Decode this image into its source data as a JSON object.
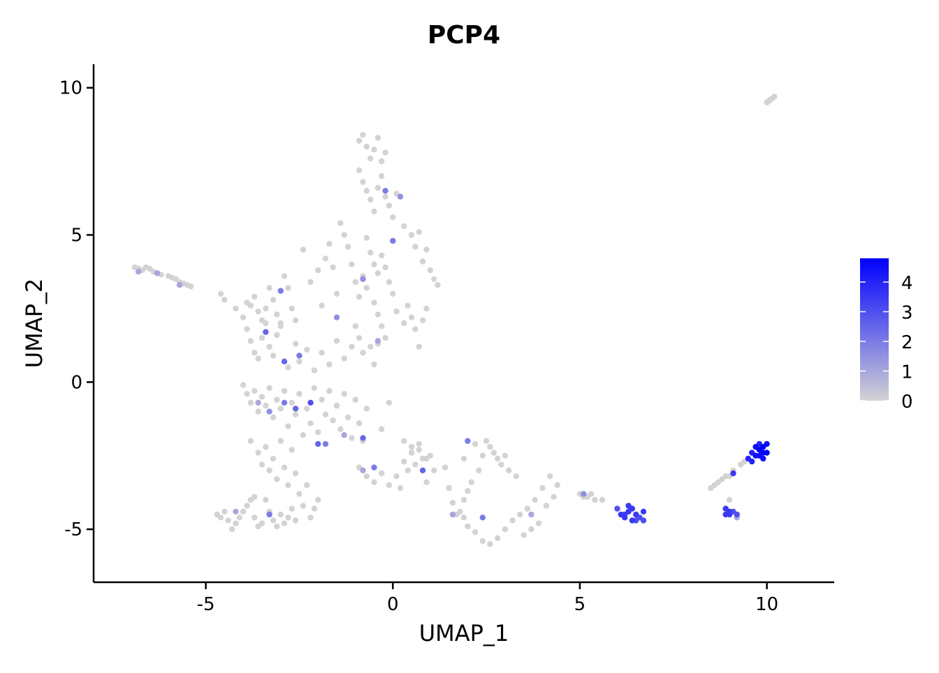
{
  "chart_data": {
    "type": "scatter",
    "title": "PCP4",
    "xlabel": "UMAP_1",
    "ylabel": "UMAP_2",
    "xlim": [
      -8,
      11.8
    ],
    "ylim": [
      -6.8,
      10.8
    ],
    "x_ticks": [
      -5,
      0,
      5,
      10
    ],
    "y_ticks": [
      -5,
      0,
      5,
      10
    ],
    "x_tick_labels": [
      "-5",
      "0",
      "5",
      "10"
    ],
    "y_tick_labels": [
      "-5",
      "0",
      "5",
      "10"
    ],
    "grid": false,
    "legend": {
      "position": "right",
      "type": "colorbar",
      "min": 0,
      "max": 4.8,
      "ticks": [
        0,
        1,
        2,
        3,
        4
      ],
      "tick_labels": [
        "0",
        "1",
        "2",
        "3",
        "4"
      ],
      "color_low": "#d3d3d3",
      "color_high": "#0000ff"
    },
    "point_color_low": "#d3d3d3",
    "point_color_high": "#0000ff",
    "points": [
      [
        -6.9,
        3.9,
        0
      ],
      [
        -6.8,
        3.85,
        0
      ],
      [
        -6.7,
        3.8,
        0
      ],
      [
        -6.6,
        3.9,
        0
      ],
      [
        -6.5,
        3.85,
        0
      ],
      [
        -6.4,
        3.75,
        0
      ],
      [
        -6.3,
        3.7,
        0
      ],
      [
        -6.2,
        3.65,
        0
      ],
      [
        -6.0,
        3.6,
        0
      ],
      [
        -5.9,
        3.55,
        0
      ],
      [
        -5.8,
        3.5,
        0
      ],
      [
        -5.7,
        3.4,
        0
      ],
      [
        -5.6,
        3.35,
        0
      ],
      [
        -5.5,
        3.3,
        0
      ],
      [
        -5.4,
        3.25,
        0
      ],
      [
        -6.8,
        3.75,
        1
      ],
      [
        -6.3,
        3.7,
        1
      ],
      [
        -5.7,
        3.3,
        1
      ],
      [
        -4.6,
        3.0,
        0
      ],
      [
        -4.5,
        2.8,
        0
      ],
      [
        -4.2,
        2.5,
        0
      ],
      [
        -4.0,
        2.2,
        0
      ],
      [
        -3.9,
        2.7,
        0
      ],
      [
        -3.8,
        2.6,
        0
      ],
      [
        -3.7,
        2.9,
        0
      ],
      [
        -3.6,
        2.4,
        0
      ],
      [
        -3.5,
        2.1,
        0
      ],
      [
        -3.4,
        2.5,
        0
      ],
      [
        -3.3,
        3.2,
        0
      ],
      [
        -3.2,
        2.8,
        0
      ],
      [
        -3.1,
        2.3,
        0
      ],
      [
        -3.0,
        2.0,
        0
      ],
      [
        -2.9,
        3.6,
        0
      ],
      [
        -2.8,
        3.2,
        0
      ],
      [
        -2.7,
        2.5,
        0
      ],
      [
        -2.6,
        2.1,
        0
      ],
      [
        -2.4,
        4.5,
        0
      ],
      [
        -2.2,
        3.4,
        0
      ],
      [
        -2.0,
        3.8,
        0
      ],
      [
        -1.9,
        2.6,
        0
      ],
      [
        -1.8,
        4.2,
        0
      ],
      [
        -1.7,
        4.7,
        0
      ],
      [
        -1.6,
        3.9,
        0
      ],
      [
        -1.5,
        3.0,
        0
      ],
      [
        -1.4,
        5.4,
        0
      ],
      [
        -1.3,
        5.0,
        0
      ],
      [
        -1.2,
        4.6,
        0
      ],
      [
        -1.1,
        4.0,
        0
      ],
      [
        -1.0,
        3.4,
        0
      ],
      [
        -0.9,
        2.9,
        0
      ],
      [
        -3.0,
        3.1,
        2
      ],
      [
        -1.5,
        2.2,
        1.5
      ],
      [
        -3.9,
        1.8,
        0
      ],
      [
        -3.8,
        1.4,
        0
      ],
      [
        -3.7,
        1.0,
        0
      ],
      [
        -3.6,
        0.8,
        0
      ],
      [
        -3.5,
        1.5,
        0
      ],
      [
        -3.4,
        2.0,
        0
      ],
      [
        -3.3,
        1.2,
        0
      ],
      [
        -3.2,
        0.9,
        0
      ],
      [
        -3.1,
        1.6,
        0
      ],
      [
        -3.0,
        1.9,
        0
      ],
      [
        -2.8,
        0.5,
        0
      ],
      [
        -2.6,
        1.3,
        0
      ],
      [
        -2.5,
        0.7,
        0
      ],
      [
        -2.3,
        1.1,
        0
      ],
      [
        -2.1,
        0.4,
        0
      ],
      [
        -1.9,
        1.0,
        0
      ],
      [
        -1.7,
        0.6,
        0
      ],
      [
        -1.5,
        1.4,
        0
      ],
      [
        -1.3,
        0.8,
        0
      ],
      [
        -1.1,
        1.2,
        0
      ],
      [
        -1.0,
        1.9,
        0
      ],
      [
        -0.9,
        1.5,
        0
      ],
      [
        -0.8,
        1.0,
        0
      ],
      [
        -3.4,
        1.7,
        2.5
      ],
      [
        -2.9,
        0.7,
        2.5
      ],
      [
        -2.5,
        0.9,
        2
      ],
      [
        -0.9,
        8.2,
        0
      ],
      [
        -0.8,
        8.4,
        0
      ],
      [
        -0.7,
        8.0,
        0
      ],
      [
        -0.6,
        7.6,
        0
      ],
      [
        -0.5,
        7.9,
        0
      ],
      [
        -0.4,
        8.3,
        0
      ],
      [
        -0.3,
        7.5,
        0
      ],
      [
        -0.2,
        7.8,
        0
      ],
      [
        -0.9,
        7.2,
        0
      ],
      [
        -0.8,
        6.8,
        0
      ],
      [
        -0.7,
        6.5,
        0
      ],
      [
        -0.6,
        6.2,
        0
      ],
      [
        -0.5,
        5.8,
        0
      ],
      [
        -0.4,
        6.6,
        0
      ],
      [
        -0.3,
        7.0,
        0
      ],
      [
        -0.2,
        6.3,
        0
      ],
      [
        -0.1,
        6.0,
        0
      ],
      [
        0.0,
        5.6,
        0
      ],
      [
        0.1,
        6.4,
        0
      ],
      [
        0.3,
        5.3,
        0
      ],
      [
        0.5,
        5.0,
        0
      ],
      [
        0.6,
        4.6,
        0
      ],
      [
        0.7,
        5.1,
        0
      ],
      [
        0.8,
        4.1,
        0
      ],
      [
        0.9,
        4.5,
        0
      ],
      [
        1.0,
        3.8,
        0
      ],
      [
        1.1,
        3.5,
        0
      ],
      [
        1.2,
        3.3,
        0
      ],
      [
        -0.2,
        6.5,
        2
      ],
      [
        0.2,
        6.3,
        1.5
      ],
      [
        0.0,
        4.8,
        2
      ],
      [
        -0.7,
        4.9,
        0
      ],
      [
        -0.6,
        4.4,
        0
      ],
      [
        -0.5,
        4.0,
        0
      ],
      [
        -0.4,
        3.7,
        0
      ],
      [
        -0.3,
        4.3,
        0
      ],
      [
        -0.2,
        3.9,
        0
      ],
      [
        -0.1,
        3.4,
        0
      ],
      [
        0.0,
        3.0,
        0
      ],
      [
        -0.8,
        3.6,
        0
      ],
      [
        -0.7,
        3.2,
        0
      ],
      [
        -0.5,
        2.7,
        0
      ],
      [
        -0.4,
        2.3,
        0
      ],
      [
        -0.3,
        1.9,
        0
      ],
      [
        -0.2,
        1.5,
        0
      ],
      [
        0.1,
        2.4,
        0
      ],
      [
        0.3,
        2.0,
        0
      ],
      [
        0.4,
        2.6,
        0
      ],
      [
        0.5,
        2.2,
        0
      ],
      [
        0.6,
        1.8,
        0
      ],
      [
        0.7,
        1.2,
        0
      ],
      [
        0.8,
        2.1,
        0
      ],
      [
        0.9,
        2.5,
        0
      ],
      [
        -0.6,
        1.2,
        0
      ],
      [
        -0.5,
        0.6,
        0
      ],
      [
        -0.4,
        1.3,
        0
      ],
      [
        -0.8,
        3.5,
        1.5
      ],
      [
        -0.4,
        1.4,
        1
      ],
      [
        -4.0,
        -0.1,
        0
      ],
      [
        -3.9,
        -0.4,
        0
      ],
      [
        -3.8,
        -0.7,
        0
      ],
      [
        -3.7,
        -0.3,
        0
      ],
      [
        -3.6,
        -1.0,
        0
      ],
      [
        -3.5,
        -0.5,
        0
      ],
      [
        -3.4,
        -0.8,
        0
      ],
      [
        -3.3,
        -0.2,
        0
      ],
      [
        -3.2,
        -1.2,
        0
      ],
      [
        -3.1,
        -0.6,
        0
      ],
      [
        -3.0,
        -0.9,
        0
      ],
      [
        -2.9,
        -0.3,
        0
      ],
      [
        -2.8,
        -1.5,
        0
      ],
      [
        -2.7,
        -0.7,
        0
      ],
      [
        -2.6,
        -1.1,
        0
      ],
      [
        -2.5,
        -0.4,
        0
      ],
      [
        -2.4,
        -1.8,
        0
      ],
      [
        -2.3,
        -0.9,
        0
      ],
      [
        -2.2,
        -1.4,
        0
      ],
      [
        -2.1,
        -0.2,
        0
      ],
      [
        -2.0,
        -1.7,
        0
      ],
      [
        -1.9,
        -0.6,
        0
      ],
      [
        -1.8,
        -1.1,
        0
      ],
      [
        -1.7,
        -0.3,
        0
      ],
      [
        -1.6,
        -1.3,
        0
      ],
      [
        -1.5,
        -0.8,
        0
      ],
      [
        -1.4,
        -1.6,
        0
      ],
      [
        -1.3,
        -0.4,
        0
      ],
      [
        -1.2,
        -1.2,
        0
      ],
      [
        -1.1,
        -1.9,
        0
      ],
      [
        -1.0,
        -0.6,
        0
      ],
      [
        -0.9,
        -1.4,
        0
      ],
      [
        -0.8,
        -2.0,
        0
      ],
      [
        -0.7,
        -0.9,
        0
      ],
      [
        -0.3,
        -1.6,
        0
      ],
      [
        -0.1,
        -0.7,
        0
      ],
      [
        -3.6,
        -0.7,
        1
      ],
      [
        -3.3,
        -1.0,
        1.5
      ],
      [
        -2.9,
        -0.7,
        2
      ],
      [
        -2.6,
        -0.9,
        2.5
      ],
      [
        -2.2,
        -0.7,
        3
      ],
      [
        -2.0,
        -2.1,
        2.5
      ],
      [
        -1.8,
        -2.1,
        2
      ],
      [
        -0.8,
        -1.9,
        2.5
      ],
      [
        -1.3,
        -1.8,
        1
      ],
      [
        -3.8,
        -2.0,
        0
      ],
      [
        -3.6,
        -2.4,
        0
      ],
      [
        -3.5,
        -2.8,
        0
      ],
      [
        -3.4,
        -2.2,
        0
      ],
      [
        -3.3,
        -3.0,
        0
      ],
      [
        -3.2,
        -2.6,
        0
      ],
      [
        -3.1,
        -3.3,
        0
      ],
      [
        -3.0,
        -2.0,
        0
      ],
      [
        -2.9,
        -2.9,
        0
      ],
      [
        -2.8,
        -3.5,
        0
      ],
      [
        -2.7,
        -2.3,
        0
      ],
      [
        -2.6,
        -3.1,
        0
      ],
      [
        -2.5,
        -3.8,
        0
      ],
      [
        -2.4,
        -4.2,
        0
      ],
      [
        -2.3,
        -3.5,
        0
      ],
      [
        -2.2,
        -4.6,
        0
      ],
      [
        -2.1,
        -4.3,
        0
      ],
      [
        -2.0,
        -4.0,
        0
      ],
      [
        -3.4,
        -4.0,
        0
      ],
      [
        -3.3,
        -4.4,
        0
      ],
      [
        -3.2,
        -4.7,
        0
      ],
      [
        -3.1,
        -4.9,
        0
      ],
      [
        -3.0,
        -4.5,
        0
      ],
      [
        -2.9,
        -4.8,
        0
      ],
      [
        -2.8,
        -4.6,
        0
      ],
      [
        -2.7,
        -4.3,
        0
      ],
      [
        -2.6,
        -4.7,
        0
      ],
      [
        -4.7,
        -4.5,
        0
      ],
      [
        -4.6,
        -4.6,
        0
      ],
      [
        -4.5,
        -4.4,
        0
      ],
      [
        -4.4,
        -4.7,
        0
      ],
      [
        -4.3,
        -5.0,
        0
      ],
      [
        -4.2,
        -4.8,
        0
      ],
      [
        -4.1,
        -4.6,
        0
      ],
      [
        -4.0,
        -4.4,
        0
      ],
      [
        -3.9,
        -4.2,
        0
      ],
      [
        -3.8,
        -4.0,
        0
      ],
      [
        -3.7,
        -4.6,
        0
      ],
      [
        -3.6,
        -4.9,
        0
      ],
      [
        -3.5,
        -4.8,
        0
      ],
      [
        -4.2,
        -4.4,
        1
      ],
      [
        -3.3,
        -4.5,
        2
      ],
      [
        -3.7,
        -3.9,
        0
      ],
      [
        -0.9,
        -2.9,
        0
      ],
      [
        -0.7,
        -3.2,
        0
      ],
      [
        -0.5,
        -3.4,
        0
      ],
      [
        -0.3,
        -3.1,
        0
      ],
      [
        -0.1,
        -3.5,
        0
      ],
      [
        0.1,
        -3.2,
        0
      ],
      [
        0.2,
        -3.6,
        0
      ],
      [
        0.3,
        -2.7,
        0
      ],
      [
        0.4,
        -3.0,
        0
      ],
      [
        0.5,
        -2.4,
        0
      ],
      [
        0.6,
        -2.8,
        0
      ],
      [
        0.7,
        -2.3,
        0
      ],
      [
        0.8,
        -2.6,
        0
      ],
      [
        0.9,
        -3.4,
        0
      ],
      [
        1.0,
        -2.5,
        0
      ],
      [
        1.1,
        -3.0,
        0
      ],
      [
        0.3,
        -2.0,
        0
      ],
      [
        0.5,
        -2.2,
        0
      ],
      [
        0.7,
        -2.1,
        0
      ],
      [
        0.9,
        -2.6,
        0
      ],
      [
        1.4,
        -2.9,
        0
      ],
      [
        1.5,
        -3.6,
        0
      ],
      [
        1.6,
        -4.1,
        0
      ],
      [
        1.7,
        -4.5,
        0
      ],
      [
        1.8,
        -4.4,
        0
      ],
      [
        1.9,
        -4.6,
        0
      ],
      [
        2.0,
        -4.9,
        0
      ],
      [
        2.2,
        -5.1,
        0
      ],
      [
        2.4,
        -5.4,
        0
      ],
      [
        2.6,
        -5.5,
        0
      ],
      [
        2.8,
        -5.3,
        0
      ],
      [
        3.0,
        -5.0,
        0
      ],
      [
        3.2,
        -4.7,
        0
      ],
      [
        3.4,
        -4.5,
        0
      ],
      [
        3.6,
        -4.3,
        0
      ],
      [
        3.8,
        -4.0,
        0
      ],
      [
        4.0,
        -3.6,
        0
      ],
      [
        4.2,
        -3.2,
        0
      ],
      [
        4.4,
        -3.5,
        0
      ],
      [
        4.3,
        -3.9,
        0
      ],
      [
        4.1,
        -4.2,
        0
      ],
      [
        3.9,
        -4.8,
        0
      ],
      [
        3.7,
        -5.0,
        0
      ],
      [
        3.5,
        -5.2,
        0
      ],
      [
        -0.5,
        -2.9,
        2
      ],
      [
        0.8,
        -3.0,
        2.5
      ],
      [
        -0.8,
        -3.0,
        1
      ],
      [
        2.0,
        -2.0,
        2
      ],
      [
        2.4,
        -4.6,
        2
      ],
      [
        1.6,
        -4.5,
        1
      ],
      [
        3.7,
        -4.5,
        1
      ],
      [
        2.5,
        -2.0,
        0
      ],
      [
        2.6,
        -2.2,
        0
      ],
      [
        2.7,
        -2.4,
        0
      ],
      [
        2.8,
        -2.6,
        0
      ],
      [
        2.9,
        -2.8,
        0
      ],
      [
        3.0,
        -2.5,
        0
      ],
      [
        2.3,
        -3.0,
        0
      ],
      [
        2.1,
        -3.4,
        0
      ],
      [
        2.0,
        -3.7,
        0
      ],
      [
        1.9,
        -4.0,
        0
      ],
      [
        3.1,
        -3.0,
        0
      ],
      [
        3.3,
        -3.2,
        0
      ],
      [
        2.4,
        -2.5,
        0
      ],
      [
        2.2,
        -2.1,
        0
      ],
      [
        1.9,
        -2.6,
        0
      ],
      [
        5.0,
        -3.8,
        0
      ],
      [
        5.2,
        -3.9,
        0
      ],
      [
        5.4,
        -4.0,
        0
      ],
      [
        5.1,
        -3.9,
        0
      ],
      [
        5.3,
        -3.8,
        0
      ],
      [
        5.6,
        -4.0,
        0
      ],
      [
        5.1,
        -3.8,
        1.5
      ],
      [
        6.0,
        -4.3,
        3
      ],
      [
        6.1,
        -4.5,
        3.5
      ],
      [
        6.2,
        -4.6,
        3.5
      ],
      [
        6.3,
        -4.4,
        3.5
      ],
      [
        6.4,
        -4.7,
        3.5
      ],
      [
        6.5,
        -4.5,
        3.5
      ],
      [
        6.6,
        -4.6,
        3
      ],
      [
        6.7,
        -4.4,
        3.5
      ],
      [
        6.3,
        -4.2,
        3.5
      ],
      [
        6.2,
        -4.5,
        3.5
      ],
      [
        6.4,
        -4.3,
        3.5
      ],
      [
        6.5,
        -4.7,
        3
      ],
      [
        6.7,
        -4.7,
        3
      ],
      [
        8.5,
        -3.6,
        0
      ],
      [
        8.6,
        -3.5,
        0
      ],
      [
        8.7,
        -3.4,
        0
      ],
      [
        8.8,
        -3.3,
        0
      ],
      [
        9.0,
        -3.2,
        0
      ],
      [
        8.9,
        -3.2,
        0
      ],
      [
        9.1,
        -3.0,
        0
      ],
      [
        9.3,
        -2.8,
        0
      ],
      [
        9.4,
        -2.7,
        0
      ],
      [
        9.0,
        -4.0,
        0
      ],
      [
        9.2,
        -4.6,
        1
      ],
      [
        9.1,
        -3.1,
        3.5
      ],
      [
        8.9,
        -4.3,
        3.5
      ],
      [
        9.0,
        -4.4,
        3.5
      ],
      [
        9.0,
        -4.5,
        3.5
      ],
      [
        9.1,
        -4.4,
        3
      ],
      [
        9.2,
        -4.5,
        3
      ],
      [
        8.9,
        -4.5,
        3.5
      ],
      [
        9.5,
        -2.6,
        4
      ],
      [
        9.6,
        -2.4,
        4
      ],
      [
        9.7,
        -2.2,
        4.5
      ],
      [
        9.8,
        -2.5,
        4.5
      ],
      [
        9.9,
        -2.4,
        4.8
      ],
      [
        9.9,
        -2.2,
        4.8
      ],
      [
        10.0,
        -2.1,
        4.5
      ],
      [
        9.8,
        -2.3,
        4.8
      ],
      [
        9.7,
        -2.5,
        4.5
      ],
      [
        9.9,
        -2.6,
        4.5
      ],
      [
        9.6,
        -2.7,
        4
      ],
      [
        9.8,
        -2.1,
        4
      ],
      [
        10.0,
        -2.4,
        4.8
      ],
      [
        10.0,
        9.5,
        0
      ],
      [
        10.1,
        9.6,
        0
      ],
      [
        10.15,
        9.65,
        0
      ],
      [
        10.2,
        9.7,
        0
      ],
      [
        10.05,
        9.55,
        0
      ]
    ]
  }
}
